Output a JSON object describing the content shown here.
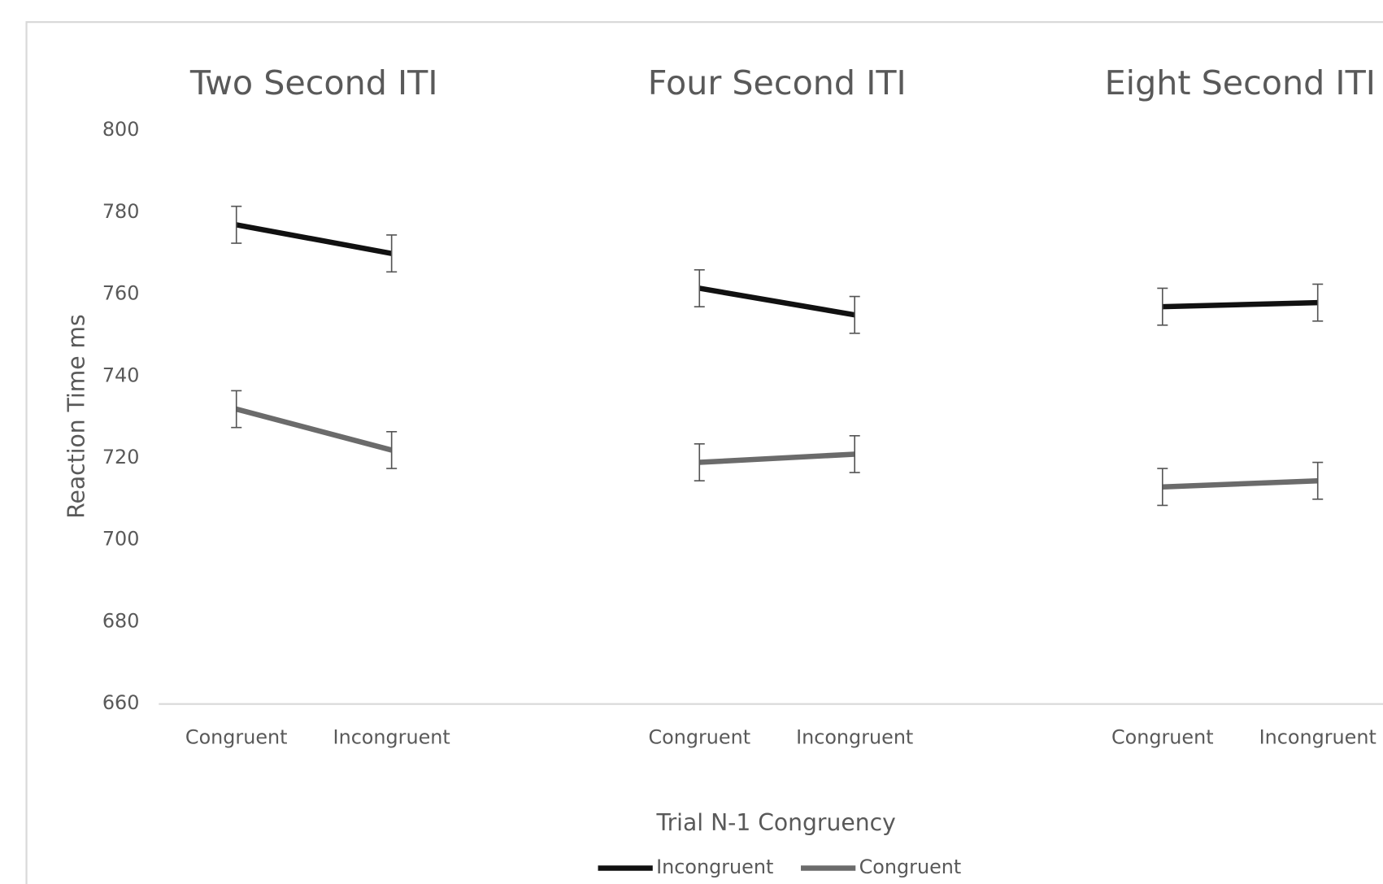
{
  "chart_data": {
    "type": "line",
    "ylabel": "Reaction Time ms",
    "xlabel": "Trial N-1 Congruency",
    "ylim": [
      660,
      800
    ],
    "yticks": [
      660,
      680,
      700,
      720,
      740,
      760,
      780,
      800
    ],
    "grid": false,
    "legend": "bottom",
    "series": [
      {
        "name": "Incongruent",
        "color": "#111111"
      },
      {
        "name": "Congruent",
        "color": "#6b6b6b"
      }
    ],
    "panels": [
      {
        "title": "Two Second ITI",
        "categories": [
          "Congruent",
          "Incongruent"
        ],
        "series": [
          {
            "values": [
              777,
              770
            ],
            "errors": [
              4.5,
              4.5
            ]
          },
          {
            "values": [
              732,
              722
            ],
            "errors": [
              4.5,
              4.5
            ]
          }
        ]
      },
      {
        "title": "Four Second ITI",
        "categories": [
          "Congruent",
          "Incongruent"
        ],
        "series": [
          {
            "values": [
              761.5,
              755
            ],
            "errors": [
              4.5,
              4.5
            ]
          },
          {
            "values": [
              719,
              721
            ],
            "errors": [
              4.5,
              4.5
            ]
          }
        ]
      },
      {
        "title": "Eight Second ITI",
        "categories": [
          "Congruent",
          "Incongruent"
        ],
        "series": [
          {
            "values": [
              757,
              758
            ],
            "errors": [
              4.5,
              4.5
            ]
          },
          {
            "values": [
              713,
              714.5
            ],
            "errors": [
              4.5,
              4.5
            ]
          }
        ]
      }
    ]
  }
}
